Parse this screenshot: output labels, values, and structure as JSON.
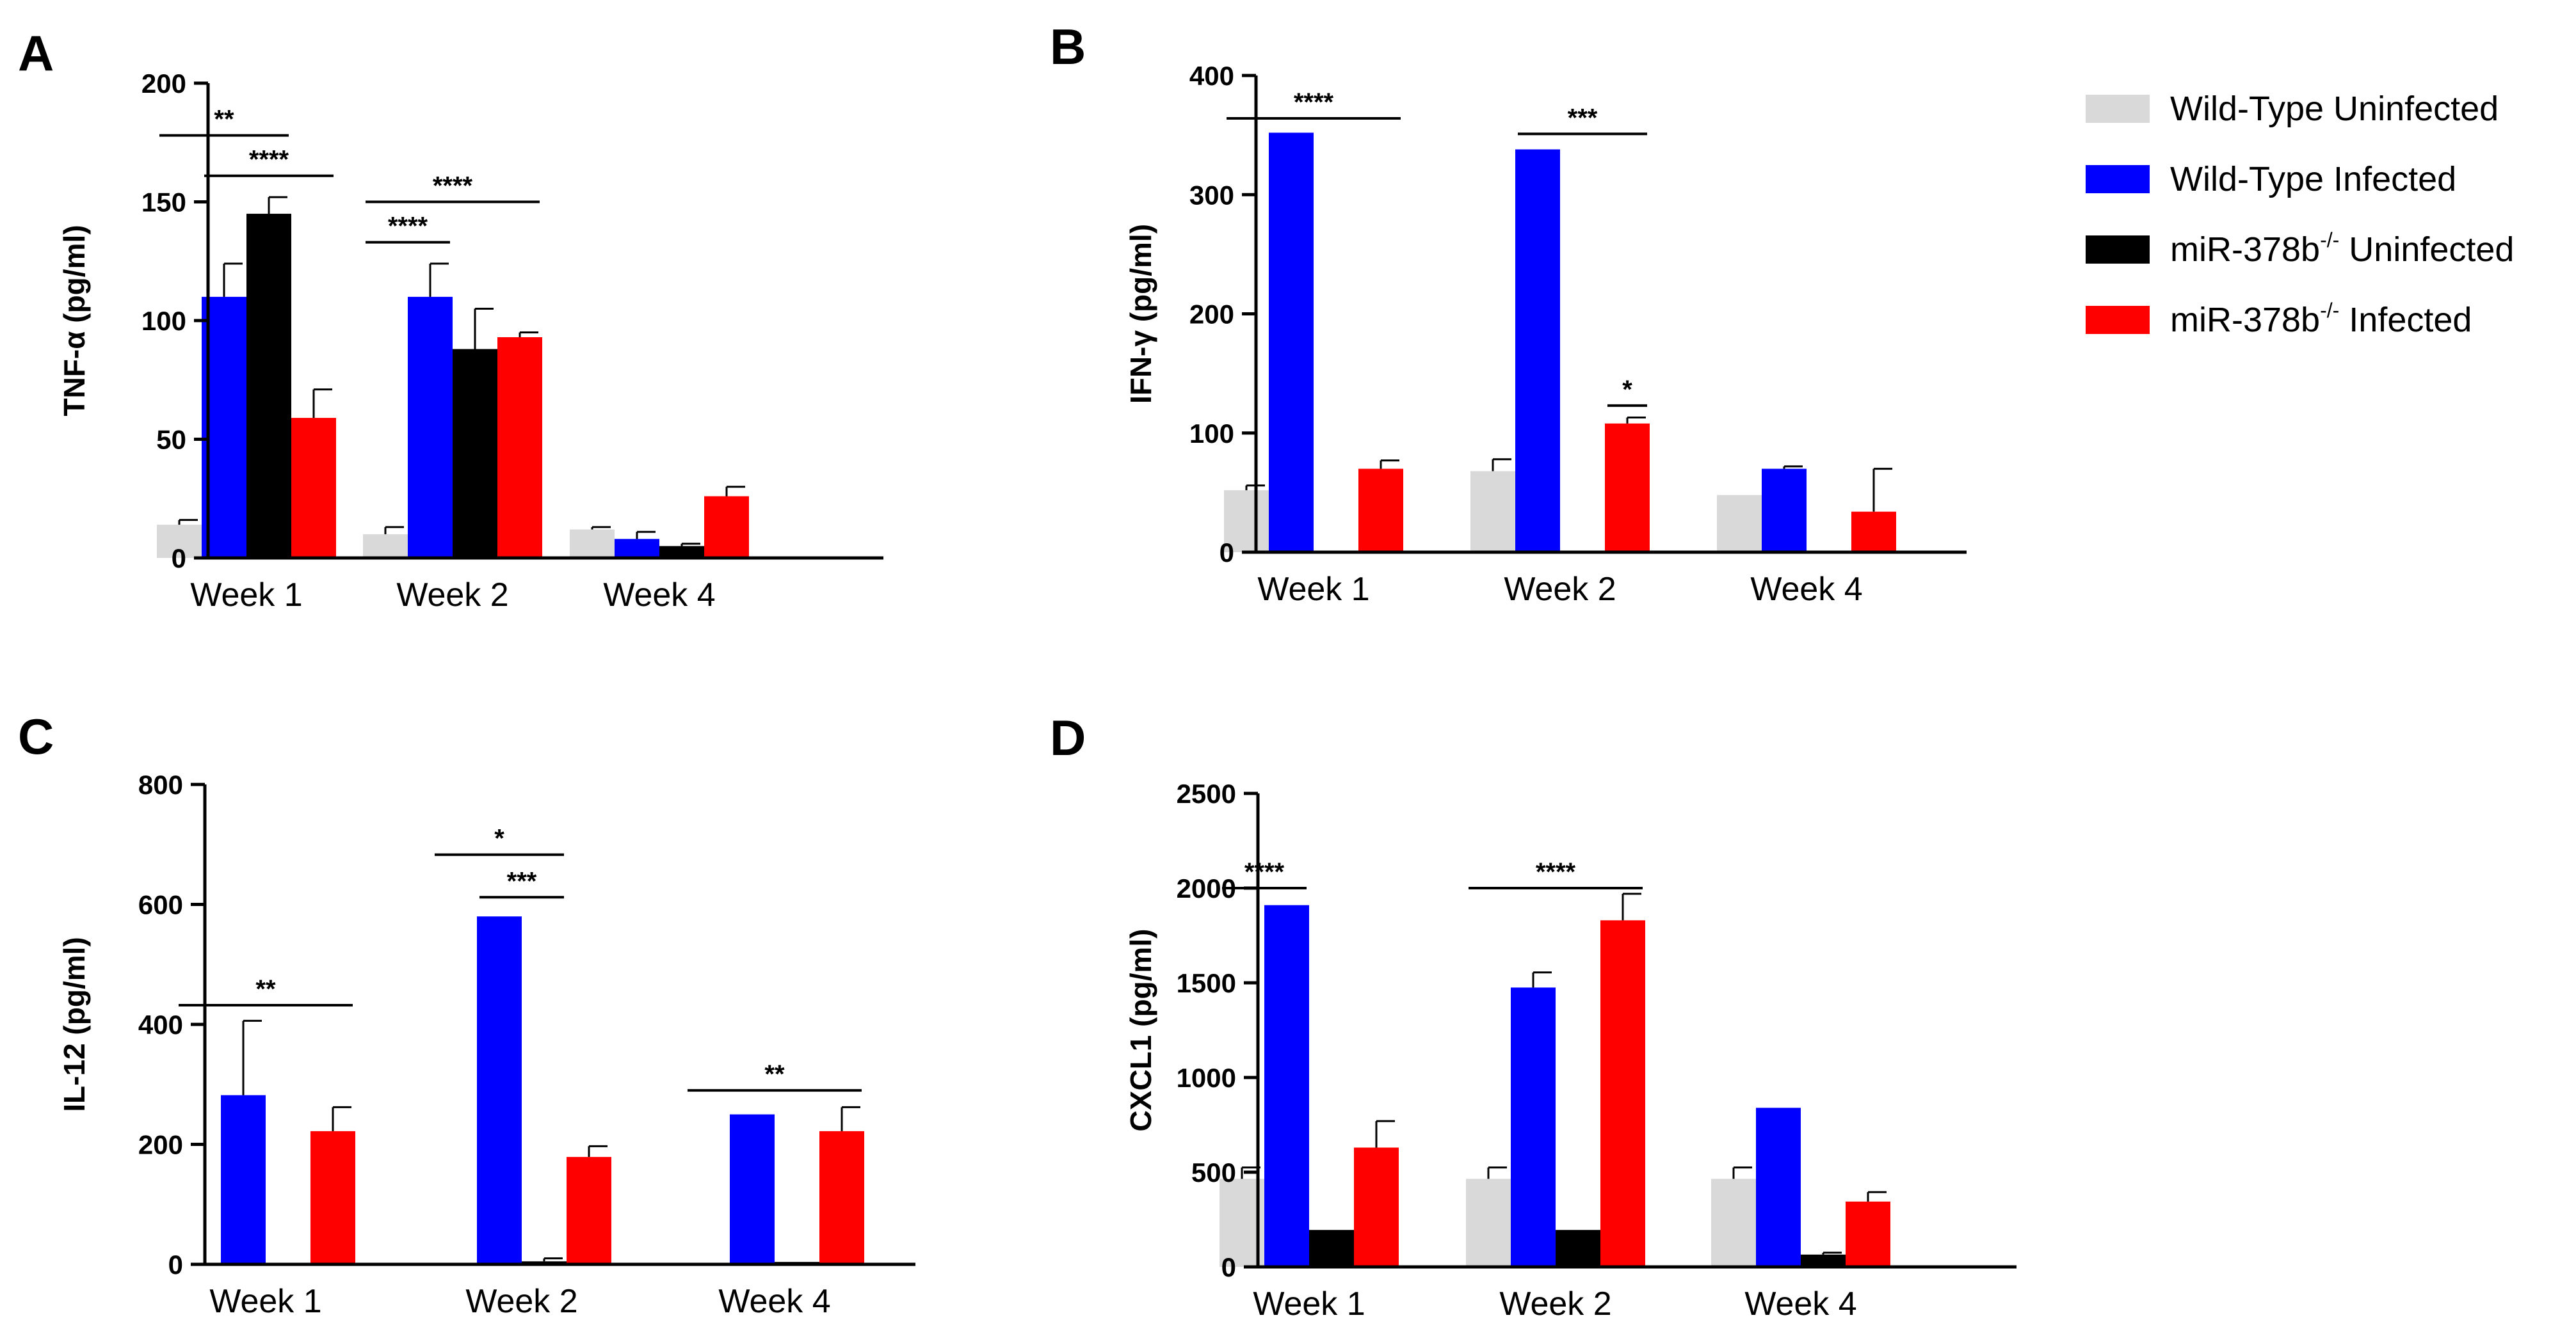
{
  "colors": {
    "Wild-Type Uninfected": "#d9d9d9",
    "Wild-Type Infected": "#0000ff",
    "miR-378b-/- Uninfected": "#000000",
    "miR-378b-/- Infected": "#ff0000"
  },
  "legend": [
    {
      "base": "Wild-Type Uninfected",
      "sup": "",
      "rest": ""
    },
    {
      "base": "Wild-Type Infected",
      "sup": "",
      "rest": ""
    },
    {
      "base": "miR-378b",
      "sup": "-/-",
      "rest": " Uninfected"
    },
    {
      "base": "miR-378b",
      "sup": "-/-",
      "rest": " Infected"
    }
  ],
  "chart_data": [
    {
      "panel": "A",
      "type": "bar",
      "ylabel": "TNF-α (pg/ml)",
      "categories": [
        "Week 1",
        "Week 2",
        "Week 4"
      ],
      "ylim": [
        0,
        200
      ],
      "yticks": [
        0,
        50,
        100,
        150,
        200
      ],
      "series": [
        {
          "name": "Wild-Type Uninfected",
          "values": [
            14,
            10,
            12
          ],
          "errors": [
            2,
            3,
            1
          ]
        },
        {
          "name": "Wild-Type Infected",
          "values": [
            110,
            110,
            8
          ],
          "errors": [
            14,
            14,
            3
          ]
        },
        {
          "name": "miR-378b-/- Uninfected",
          "values": [
            145,
            88,
            5
          ],
          "errors": [
            7,
            17,
            1
          ]
        },
        {
          "name": "miR-378b-/- Infected",
          "values": [
            59,
            93,
            26
          ],
          "errors": [
            12,
            2,
            4
          ]
        }
      ],
      "significance": [
        {
          "label": "**",
          "group": 0,
          "from": 0,
          "to": 2,
          "y": 178
        },
        {
          "label": "****",
          "group": 0,
          "from": 1,
          "to": 3,
          "y": 161
        },
        {
          "label": "****",
          "group": 1,
          "from": 0,
          "to": 3,
          "y": 150
        },
        {
          "label": "****",
          "group": 1,
          "from": 0,
          "to": 1,
          "y": 133
        }
      ]
    },
    {
      "panel": "B",
      "type": "bar",
      "ylabel": "IFN-γ (pg/ml)",
      "categories": [
        "Week 1",
        "Week 2",
        "Week 4"
      ],
      "ylim": [
        0,
        400
      ],
      "yticks": [
        0,
        100,
        200,
        300,
        400
      ],
      "series": [
        {
          "name": "Wild-Type Uninfected",
          "values": [
            52,
            68,
            48
          ],
          "errors": [
            4,
            10,
            0
          ]
        },
        {
          "name": "Wild-Type Infected",
          "values": [
            352,
            338,
            70
          ],
          "errors": [
            0,
            0,
            2
          ]
        },
        {
          "name": "miR-378b-/- Uninfected",
          "values": [
            0,
            0,
            0
          ],
          "errors": [
            0,
            0,
            0
          ]
        },
        {
          "name": "miR-378b-/- Infected",
          "values": [
            70,
            108,
            34
          ],
          "errors": [
            7,
            5,
            36
          ]
        }
      ],
      "significance": [
        {
          "label": "****",
          "group": 0,
          "from": 0,
          "to": 3,
          "y": 364
        },
        {
          "label": "***",
          "group": 1,
          "from": 1,
          "to": 3,
          "y": 351
        },
        {
          "label": "*",
          "group": 1,
          "from": 3,
          "to": 3,
          "y": 123
        }
      ]
    },
    {
      "panel": "C",
      "type": "bar",
      "ylabel": "IL-12 (pg/ml)",
      "categories": [
        "Week 1",
        "Week 2",
        "Week 4"
      ],
      "ylim": [
        0,
        800
      ],
      "yticks": [
        0,
        200,
        400,
        600,
        800
      ],
      "series": [
        {
          "name": "Wild-Type Uninfected",
          "values": [
            0,
            0,
            0
          ],
          "errors": [
            0,
            0,
            0
          ]
        },
        {
          "name": "Wild-Type Infected",
          "values": [
            282,
            580,
            250
          ],
          "errors": [
            124,
            0,
            0
          ]
        },
        {
          "name": "miR-378b-/- Uninfected",
          "values": [
            0,
            5,
            4
          ],
          "errors": [
            0,
            5,
            0
          ]
        },
        {
          "name": "miR-378b-/- Infected",
          "values": [
            222,
            179,
            222
          ],
          "errors": [
            40,
            18,
            40
          ]
        }
      ],
      "significance": [
        {
          "label": "**",
          "group": 0,
          "from": 0,
          "to": 3,
          "y": 432
        },
        {
          "label": "*",
          "group": 1,
          "from": 0,
          "to": 2,
          "y": 683
        },
        {
          "label": "***",
          "group": 1,
          "from": 1,
          "to": 2,
          "y": 612
        },
        {
          "label": "**",
          "group": 2,
          "from": 0,
          "to": 3,
          "y": 290
        }
      ]
    },
    {
      "panel": "D",
      "type": "bar",
      "ylabel": "CXCL1 (pg/ml)",
      "categories": [
        "Week 1",
        "Week 2",
        "Week 4"
      ],
      "ylim": [
        0,
        2500
      ],
      "yticks": [
        0,
        500,
        1000,
        1500,
        2000,
        2500
      ],
      "series": [
        {
          "name": "Wild-Type Uninfected",
          "values": [
            465,
            465,
            465
          ],
          "errors": [
            60,
            60,
            60
          ]
        },
        {
          "name": "Wild-Type Infected",
          "values": [
            1910,
            1475,
            840
          ],
          "errors": [
            0,
            80,
            0
          ]
        },
        {
          "name": "miR-378b-/- Uninfected",
          "values": [
            195,
            195,
            65
          ],
          "errors": [
            0,
            0,
            10
          ]
        },
        {
          "name": "miR-378b-/- Infected",
          "values": [
            630,
            1830,
            345
          ],
          "errors": [
            140,
            140,
            50
          ]
        }
      ],
      "significance": [
        {
          "label": "****",
          "group": 0,
          "from": 0,
          "to": 1,
          "y": 2000
        },
        {
          "label": "****",
          "group": 1,
          "from": 0,
          "to": 3,
          "y": 2000
        }
      ]
    }
  ]
}
